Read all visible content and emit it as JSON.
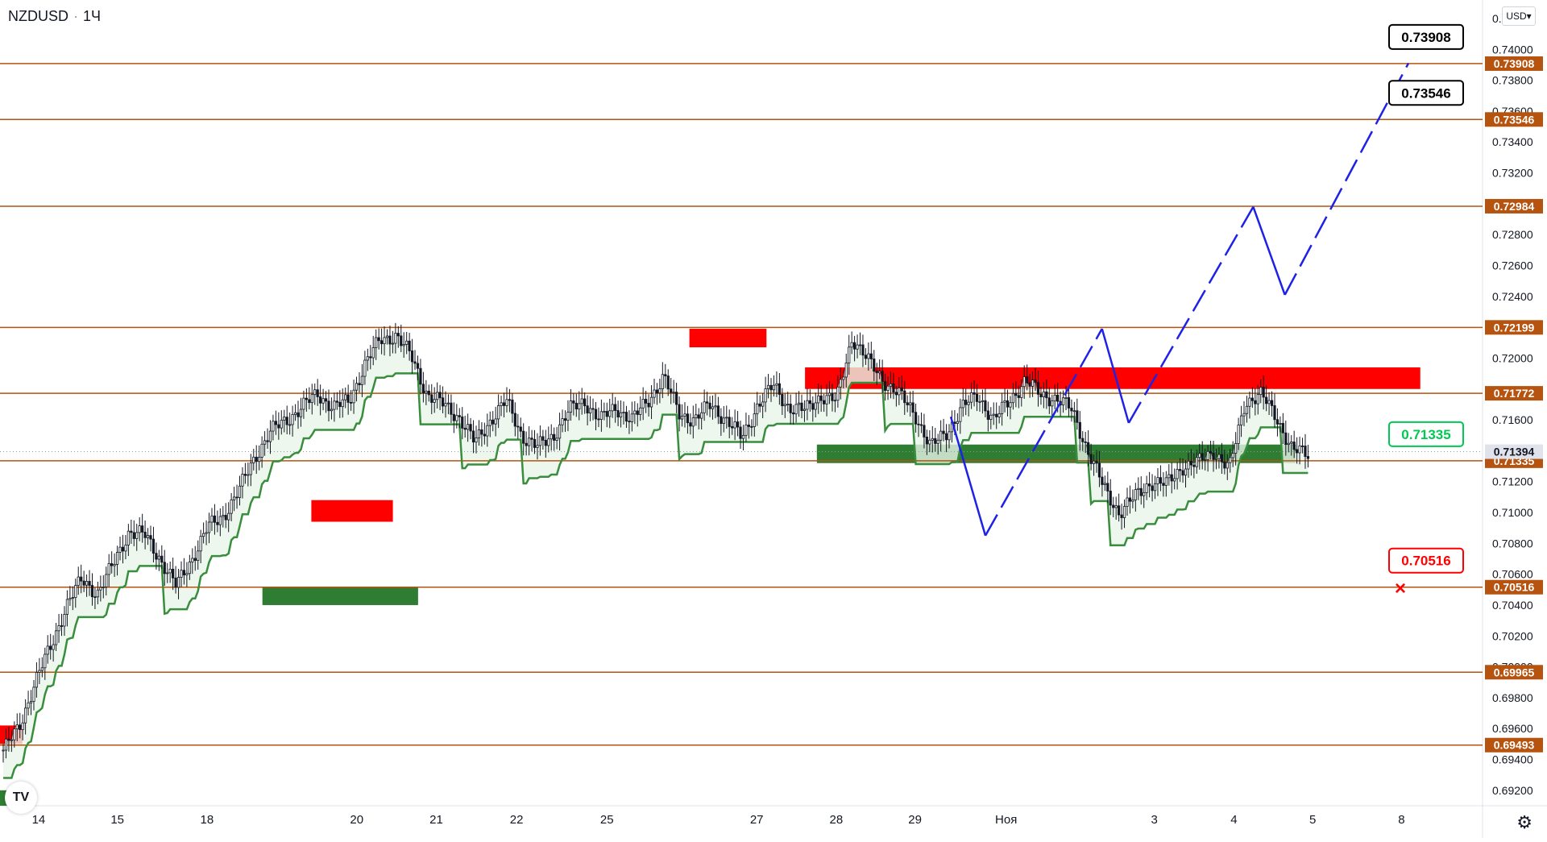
{
  "header": {
    "symbol": "NZDUSD",
    "interval": "1Ч",
    "dot": "·",
    "currency": "USD"
  },
  "logo_text": "TV",
  "settings_icon": "gear-icon",
  "colors": {
    "level": "#b5530f",
    "up_candle": "#26a69a",
    "down_candle": "#ef5350",
    "candle": "#131722",
    "supply": "#ff0000",
    "demand": "#2e7d32",
    "arrow": "#1e22e6",
    "trail_up": "#388e3c",
    "trail_down": "#b71c1c"
  },
  "chart_data": {
    "type": "candlestick",
    "symbol": "NZDUSD",
    "timeframe": "1Ч",
    "ylim": [
      0.691,
      0.7432
    ],
    "y_ticks": [
      "0.74200",
      "0.74000",
      "0.73800",
      "0.73600",
      "0.73400",
      "0.73200",
      "0.72800",
      "0.72600",
      "0.72400",
      "0.72000",
      "0.71600",
      "0.71200",
      "0.71000",
      "0.70800",
      "0.70600",
      "0.70400",
      "0.70200",
      "0.70000",
      "0.69800",
      "0.69600",
      "0.69400",
      "0.69200"
    ],
    "x_ticks": [
      "14",
      "15",
      "18",
      "20",
      "21",
      "22",
      "25",
      "27",
      "28",
      "29",
      "Ноя",
      "3",
      "4",
      "5",
      "8"
    ],
    "levels": [
      0.73908,
      0.73546,
      0.72984,
      0.72199,
      0.71772,
      0.71335,
      0.70516,
      0.69965,
      0.69493
    ],
    "level_labels": [
      "0.73908",
      "0.73546",
      "0.72984",
      "0.72199",
      "0.71772",
      "0.71335",
      "0.70516",
      "0.69965",
      "0.69493"
    ],
    "current_price": {
      "label": "0.71394",
      "value": 0.71394
    },
    "callouts": [
      {
        "label": "0.73908",
        "value": 0.73908,
        "color": "#000000"
      },
      {
        "label": "0.73546",
        "value": 0.73546,
        "color": "#000000"
      },
      {
        "label": "0.71335",
        "value": 0.71335,
        "color": "#00c853"
      },
      {
        "label": "0.70516",
        "value": 0.70516,
        "color": "#ff0000"
      }
    ],
    "supply_zones": [
      {
        "x0": 0,
        "x1": 0.015,
        "y0": 0.6962,
        "y1": 0.695
      },
      {
        "x0": 0.21,
        "x1": 0.265,
        "y0": 0.7108,
        "y1": 0.7094
      },
      {
        "x0": 0.465,
        "x1": 0.517,
        "y0": 0.7219,
        "y1": 0.7207
      },
      {
        "x0": 0.543,
        "x1": 0.958,
        "y0": 0.7194,
        "y1": 0.718
      }
    ],
    "demand_zones": [
      {
        "x0": 0,
        "x1": 0.015,
        "y0": 0.692,
        "y1": 0.691
      },
      {
        "x0": 0.177,
        "x1": 0.282,
        "y0": 0.7052,
        "y1": 0.704
      },
      {
        "x0": 0.551,
        "x1": 0.874,
        "y0": 0.7144,
        "y1": 0.7132
      }
    ],
    "forecast_path": [
      [
        0.962,
        0.7162
      ],
      [
        0.997,
        0.7085
      ],
      [
        1.115,
        0.7219
      ],
      [
        1.142,
        0.7158
      ],
      [
        1.268,
        0.7298
      ],
      [
        1.3,
        0.7241
      ],
      [
        1.425,
        0.7391
      ]
    ],
    "target_cross": {
      "x": 0.7051
    },
    "series": [
      {
        "from": 0.6946,
        "to": 0.695,
        "swings": [
          0.6946,
          0.696,
          0.699,
          0.7012,
          0.704,
          0.7056,
          0.7048,
          0.7066,
          0.7088,
          0.7085,
          0.707,
          0.7052,
          0.707,
          0.709,
          0.7098,
          0.7114,
          0.7136,
          0.7152,
          0.716,
          0.7168,
          0.7177,
          0.7168,
          0.7172,
          0.7196,
          0.7212,
          0.7215,
          0.72,
          0.7176,
          0.717,
          0.7162,
          0.7145,
          0.716,
          0.7172,
          0.715,
          0.7142,
          0.715,
          0.7166,
          0.7172,
          0.716,
          0.7168,
          0.716,
          0.7172,
          0.7188,
          0.7164,
          0.716,
          0.717,
          0.716,
          0.7148,
          0.717,
          0.7182,
          0.7168,
          0.7166,
          0.7176,
          0.7172,
          0.7214,
          0.7198,
          0.7186,
          0.7176,
          0.7164,
          0.7142,
          0.7152,
          0.7168,
          0.7176,
          0.716,
          0.7172,
          0.7186,
          0.7176,
          0.7174,
          0.7166,
          0.714,
          0.7116,
          0.71,
          0.711,
          0.712,
          0.7118,
          0.713,
          0.7132,
          0.714,
          0.7128,
          0.7172,
          0.7176,
          0.7162,
          0.714,
          0.7138
        ]
      }
    ]
  }
}
